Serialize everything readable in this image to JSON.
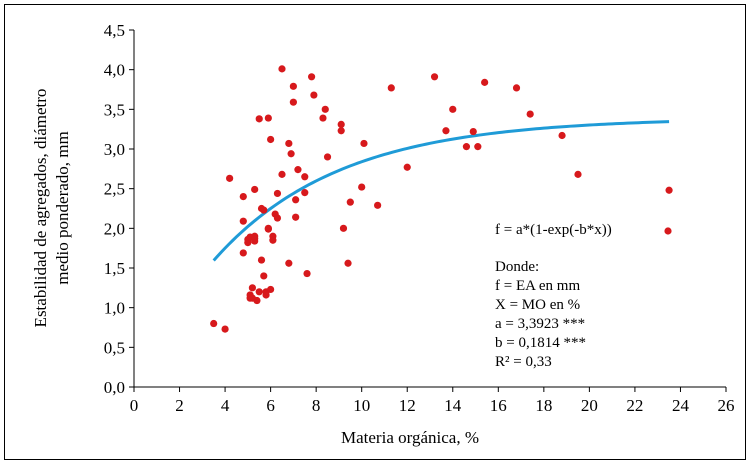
{
  "chart_data": {
    "type": "scatter",
    "title": "",
    "xlabel": "Materia orgánica, %",
    "ylabel_lines": [
      "Estabilidad de agregados, diámetro",
      "medio ponderado, mm"
    ],
    "xlim": [
      0,
      26
    ],
    "ylim": [
      0,
      4.5
    ],
    "x_ticks": [
      "0",
      "2",
      "4",
      "6",
      "8",
      "10",
      "12",
      "14",
      "16",
      "18",
      "20",
      "22",
      "24",
      "26"
    ],
    "y_ticks": [
      "0,0",
      "0,5",
      "1,0",
      "1,5",
      "2,0",
      "2,5",
      "3,0",
      "3,5",
      "4,0",
      "4,5"
    ],
    "grid": false,
    "colors": {
      "points": "#d7191c",
      "curve": "#1f9bd7"
    },
    "legend_entry": "f = a*(1-exp(-b*x))",
    "annotation_lines": [
      "Donde:",
      "f = EA en mm",
      "X = MO en %",
      "a = 3,3923 ***",
      "b = 0,1814 ***",
      "R² = 0,33"
    ],
    "fit": {
      "a": 3.3923,
      "b": 0.1814,
      "x_range": [
        3.5,
        23.5
      ]
    },
    "points": [
      [
        3.5,
        0.8
      ],
      [
        4.0,
        0.73
      ],
      [
        4.2,
        2.63
      ],
      [
        4.8,
        2.4
      ],
      [
        4.8,
        2.09
      ],
      [
        4.8,
        1.69
      ],
      [
        5.0,
        1.82
      ],
      [
        5.0,
        1.86
      ],
      [
        5.1,
        1.89
      ],
      [
        5.1,
        1.12
      ],
      [
        5.1,
        1.16
      ],
      [
        5.2,
        1.25
      ],
      [
        5.2,
        1.12
      ],
      [
        5.3,
        1.84
      ],
      [
        5.3,
        1.87
      ],
      [
        5.3,
        1.9
      ],
      [
        5.3,
        2.49
      ],
      [
        5.4,
        1.09
      ],
      [
        5.5,
        3.38
      ],
      [
        5.5,
        1.2
      ],
      [
        5.6,
        2.25
      ],
      [
        5.6,
        1.6
      ],
      [
        5.7,
        2.23
      ],
      [
        5.7,
        1.4
      ],
      [
        5.8,
        1.16
      ],
      [
        5.8,
        1.2
      ],
      [
        5.9,
        3.39
      ],
      [
        5.9,
        2.0
      ],
      [
        5.9,
        1.99
      ],
      [
        6.0,
        3.12
      ],
      [
        6.0,
        1.23
      ],
      [
        6.1,
        1.85
      ],
      [
        6.1,
        1.9
      ],
      [
        6.2,
        2.18
      ],
      [
        6.3,
        2.13
      ],
      [
        6.3,
        2.44
      ],
      [
        6.5,
        4.01
      ],
      [
        6.5,
        2.68
      ],
      [
        6.8,
        3.07
      ],
      [
        6.8,
        1.56
      ],
      [
        6.9,
        2.94
      ],
      [
        7.0,
        3.79
      ],
      [
        7.0,
        3.59
      ],
      [
        7.1,
        2.36
      ],
      [
        7.1,
        2.14
      ],
      [
        7.2,
        2.74
      ],
      [
        7.5,
        2.65
      ],
      [
        7.5,
        2.45
      ],
      [
        7.6,
        1.43
      ],
      [
        7.8,
        3.91
      ],
      [
        7.9,
        3.68
      ],
      [
        8.3,
        3.39
      ],
      [
        8.4,
        3.5
      ],
      [
        8.5,
        2.9
      ],
      [
        9.1,
        3.31
      ],
      [
        9.1,
        3.23
      ],
      [
        9.2,
        2.0
      ],
      [
        9.4,
        1.56
      ],
      [
        9.5,
        2.33
      ],
      [
        10.0,
        2.52
      ],
      [
        10.1,
        3.07
      ],
      [
        10.7,
        2.29
      ],
      [
        11.3,
        3.77
      ],
      [
        12.0,
        2.77
      ],
      [
        13.2,
        3.91
      ],
      [
        13.7,
        3.23
      ],
      [
        14.0,
        3.5
      ],
      [
        14.6,
        3.03
      ],
      [
        14.9,
        3.22
      ],
      [
        15.1,
        3.03
      ],
      [
        15.4,
        3.84
      ],
      [
        16.8,
        3.77
      ],
      [
        17.4,
        3.44
      ],
      [
        18.8,
        3.17
      ],
      [
        19.5,
        2.68
      ],
      [
        23.5,
        2.48
      ]
    ]
  }
}
